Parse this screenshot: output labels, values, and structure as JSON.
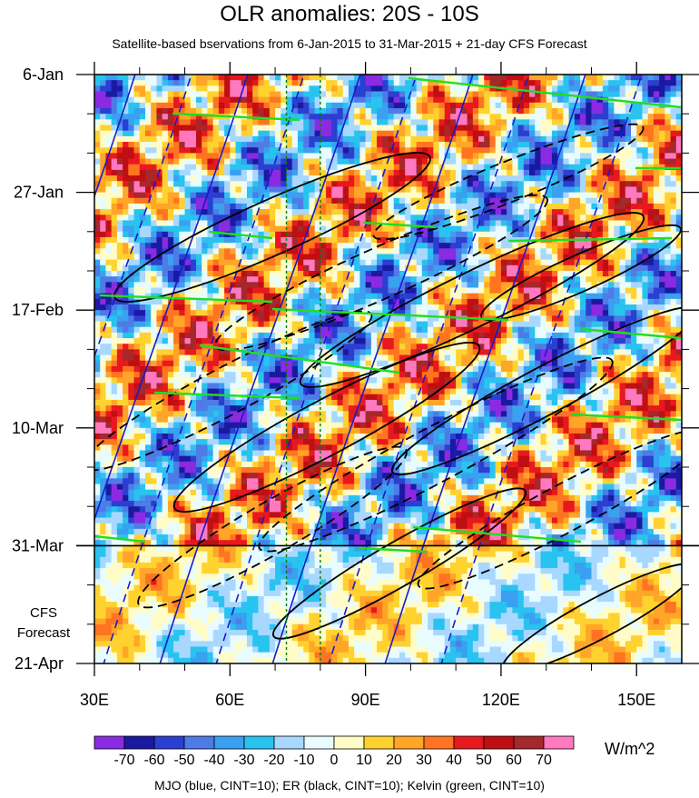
{
  "title": "OLR anomalies: 20S - 10S",
  "subtitle": "Satellite-based bservations from 6-Jan-2015 to 31-Mar-2015 + 21-day CFS Forecast",
  "cfs_label_line1": "CFS",
  "cfs_label_line2": "Forecast",
  "units": "W/m^2",
  "footer": "MJO (blue, CINT=10); ER (black, CINT=10); Kelvin (green, CINT=10)",
  "colors": {
    "mjo": "#1a1acc",
    "er": "#000000",
    "kelvin": "#22dd22",
    "colorbar": [
      "#8a2be2",
      "#1a1aa0",
      "#2b3fd0",
      "#4f7be6",
      "#3aa0f0",
      "#29c3f0",
      "#a8d8ff",
      "#e8fcff",
      "#fffcc8",
      "#ffd230",
      "#ffa628",
      "#ff7420",
      "#e8191e",
      "#bf0f12",
      "#a5282b",
      "#ff79c0"
    ]
  },
  "chart_data": {
    "type": "heatmap",
    "title": "OLR anomalies: 20S - 10S",
    "xlabel": "",
    "ylabel": "",
    "x_range": [
      30,
      160
    ],
    "x_ticks": [
      {
        "value": 30,
        "label": "30E"
      },
      {
        "value": 60,
        "label": "60E"
      },
      {
        "value": 90,
        "label": "90E"
      },
      {
        "value": 120,
        "label": "120E"
      },
      {
        "value": 150,
        "label": "150E"
      }
    ],
    "y_range_days": [
      0,
      105
    ],
    "y_ticks": [
      {
        "value": 0,
        "label": "6-Jan"
      },
      {
        "value": 21,
        "label": "27-Jan"
      },
      {
        "value": 42,
        "label": "17-Feb"
      },
      {
        "value": 63,
        "label": "10-Mar"
      },
      {
        "value": 84,
        "label": "31-Mar"
      },
      {
        "value": 105,
        "label": "21-Apr"
      }
    ],
    "forecast_start_day": 84,
    "reference_lons": [
      72.5,
      80
    ],
    "colorbar_labels": [
      "-70",
      "-60",
      "-50",
      "-40",
      "-30",
      "-20",
      "-10",
      "0",
      "10",
      "20",
      "30",
      "40",
      "50",
      "60",
      "70"
    ],
    "contours": [
      "MJO (blue, CINT=10)",
      "ER (black, CINT=10)",
      "Kelvin (green, CINT=10)"
    ]
  }
}
